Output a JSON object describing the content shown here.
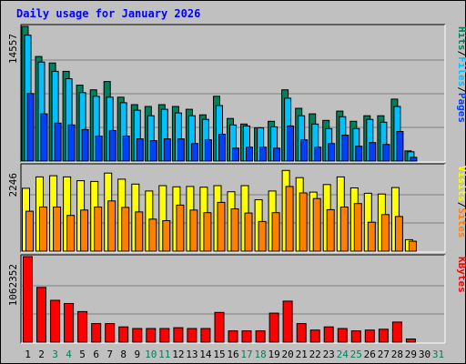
{
  "title": "Daily usage for January 2026",
  "colors": {
    "page_bg": "#C0C0C0",
    "panel_bg": "#C0C0C0",
    "title": "#0000FF",
    "hits": "#00805C",
    "files": "#00C0FF",
    "pages": "#0040FF",
    "visits": "#FFFF00",
    "sites": "#FF8000",
    "kbytes": "#FF0000",
    "weekend_label": "#00805C",
    "weekday_label": "#000000"
  },
  "legend": {
    "top": [
      "Hits",
      "/",
      "Files",
      "/",
      "Pages"
    ],
    "mid": [
      "Visits",
      "/",
      "Sites"
    ],
    "bottom": [
      "KBytes"
    ]
  },
  "chart_data": {
    "type": "bar",
    "x": [
      1,
      2,
      3,
      4,
      5,
      6,
      7,
      8,
      9,
      10,
      11,
      12,
      13,
      14,
      15,
      16,
      17,
      18,
      19,
      20,
      21,
      22,
      23,
      24,
      25,
      26,
      27,
      28,
      29,
      30,
      31
    ],
    "x_labels": [
      "1",
      "2",
      "3",
      "4",
      "5",
      "6",
      "7",
      "8",
      "9",
      "10",
      "11",
      "12",
      "13",
      "14",
      "15",
      "16",
      "17",
      "18",
      "19",
      "20",
      "21",
      "22",
      "23",
      "24",
      "25",
      "26",
      "27",
      "28",
      "29",
      "30",
      "31"
    ],
    "weekend_days": [
      3,
      4,
      10,
      11,
      17,
      18,
      24,
      25,
      31
    ],
    "panels": [
      {
        "name": "hits_files_pages",
        "ymax_label": "14557",
        "ymax": 14557,
        "series": [
          {
            "name": "Hits",
            "values": [
              14557,
              11300,
              10600,
              9700,
              8200,
              7700,
              8600,
              6900,
              6100,
              5900,
              6100,
              5900,
              5600,
              5000,
              7000,
              4600,
              4000,
              3600,
              4300,
              7700,
              5700,
              5100,
              4400,
              5400,
              4300,
              4900,
              4900,
              6700,
              1100,
              0,
              0
            ]
          },
          {
            "name": "Files",
            "values": [
              13600,
              10700,
              9700,
              8900,
              7400,
              7000,
              6900,
              6300,
              5500,
              4900,
              5600,
              5200,
              4900,
              4500,
              6000,
              3900,
              3800,
              3600,
              3700,
              6800,
              4900,
              4000,
              3500,
              4800,
              3500,
              4500,
              4200,
              5900,
              1000,
              0,
              0
            ]
          },
          {
            "name": "Pages",
            "values": [
              7300,
              5100,
              4100,
              3900,
              3400,
              2700,
              3300,
              2700,
              2400,
              2200,
              2400,
              2400,
              1900,
              2300,
              2900,
              1400,
              1500,
              1500,
              1400,
              3800,
              2300,
              1500,
              1900,
              2800,
              1600,
              2000,
              1800,
              3200,
              400,
              0,
              0
            ]
          }
        ]
      },
      {
        "name": "visits_sites",
        "ymax_label": "2246",
        "ymax": 2246,
        "series": [
          {
            "name": "Visits",
            "values": [
              1650,
              1950,
              1980,
              1950,
              1850,
              1830,
              2050,
              1890,
              1760,
              1580,
              1720,
              1690,
              1700,
              1680,
              1720,
              1560,
              1720,
              1350,
              1580,
              2120,
              1930,
              1550,
              1750,
              1950,
              1660,
              1520,
              1500,
              1670,
              300,
              0,
              0
            ]
          },
          {
            "name": "Sites",
            "values": [
              1050,
              1160,
              1160,
              940,
              1080,
              1160,
              1320,
              1150,
              1030,
              840,
              800,
              1210,
              1080,
              1010,
              1280,
              1110,
              1000,
              780,
              1010,
              1700,
              1530,
              1380,
              1090,
              1160,
              1250,
              760,
              960,
              910,
              260,
              0,
              0
            ]
          }
        ]
      },
      {
        "name": "kbytes",
        "ymax_label": "1062352",
        "ymax": 1062352,
        "series": [
          {
            "name": "KBytes",
            "values": [
              1062352,
              680000,
              520000,
              480000,
              380000,
              230000,
              230000,
              190000,
              170000,
              170000,
              170000,
              180000,
              170000,
              170000,
              370000,
              140000,
              140000,
              140000,
              360000,
              510000,
              230000,
              150000,
              190000,
              170000,
              140000,
              150000,
              160000,
              250000,
              40000,
              0,
              0
            ]
          }
        ]
      }
    ]
  }
}
